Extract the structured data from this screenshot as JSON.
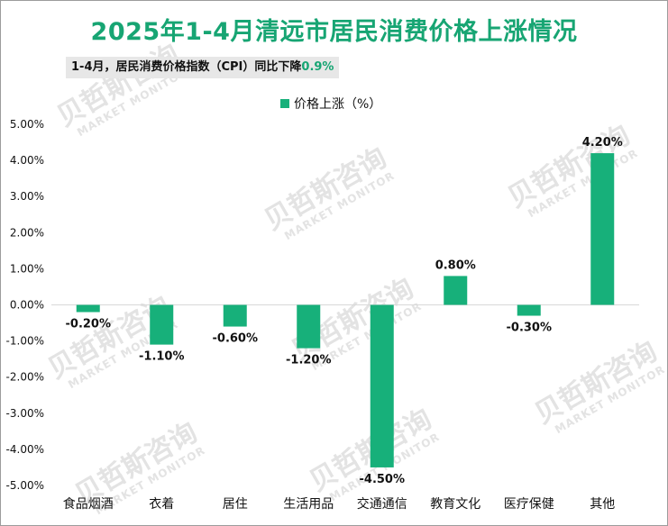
{
  "header": {
    "title": "2025年1-4月清远市居民消费价格上涨情况",
    "subtitle_prefix": "1-4月，居民消费价格指数（CPI）同比下降",
    "subtitle_value": "0.9%"
  },
  "watermark": {
    "brand": "贝哲斯咨询",
    "sub": "MARKET MONITOR"
  },
  "colors": {
    "bar": "#17b07a",
    "title": "#17a573",
    "axis": "#d9d9d9"
  },
  "chart_data": {
    "type": "bar",
    "categories": [
      "食品烟酒",
      "衣着",
      "居住",
      "生活用品",
      "交通通信",
      "教育文化",
      "医疗保健",
      "其他"
    ],
    "series": [
      {
        "name": "价格上涨（%）",
        "values": [
          -0.2,
          -1.1,
          -0.6,
          -1.2,
          -4.5,
          0.8,
          -0.3,
          4.2
        ]
      }
    ],
    "data_labels": [
      "-0.20%",
      "-1.10%",
      "-0.60%",
      "-1.20%",
      "-4.50%",
      "0.80%",
      "-0.30%",
      "4.20%"
    ],
    "y_ticks": [
      "5.00%",
      "4.00%",
      "3.00%",
      "2.00%",
      "1.00%",
      "0.00%",
      "-1.00%",
      "-2.00%",
      "-3.00%",
      "-4.00%",
      "-5.00%"
    ],
    "y_tick_values": [
      5,
      4,
      3,
      2,
      1,
      0,
      -1,
      -2,
      -3,
      -4,
      -5
    ],
    "ylim": [
      -5,
      5
    ],
    "legend": "价格上涨（%）",
    "legend_position": "top",
    "grid": false
  }
}
